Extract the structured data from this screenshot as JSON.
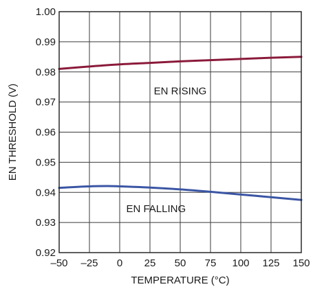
{
  "chart_data": {
    "type": "line",
    "xlabel": "TEMPERATURE (°C)",
    "ylabel": "EN THRESHOLD (V)",
    "xlim": [
      -50,
      150
    ],
    "ylim": [
      0.92,
      1.0
    ],
    "grid": true,
    "x_ticks": [
      "–50",
      "–25",
      "0",
      "25",
      "50",
      "75",
      "100",
      "125",
      "150"
    ],
    "y_ticks": [
      "0.92",
      "0.93",
      "0.94",
      "0.95",
      "0.96",
      "0.97",
      "0.98",
      "0.99",
      "1.00"
    ],
    "x_tick_values": [
      -50,
      -25,
      0,
      25,
      50,
      75,
      100,
      125,
      150
    ],
    "y_tick_values": [
      0.92,
      0.93,
      0.94,
      0.95,
      0.96,
      0.97,
      0.98,
      0.99,
      1.0
    ],
    "series": [
      {
        "name": "EN RISING",
        "color": "#8b1a3a",
        "x": [
          -50,
          -25,
          0,
          25,
          50,
          75,
          100,
          125,
          150
        ],
        "y": [
          0.981,
          0.9818,
          0.9825,
          0.983,
          0.9835,
          0.9839,
          0.9843,
          0.9847,
          0.985
        ]
      },
      {
        "name": "EN FALLING",
        "color": "#3a55a4",
        "x": [
          -50,
          -25,
          -10,
          0,
          25,
          50,
          75,
          100,
          125,
          150
        ],
        "y": [
          0.9415,
          0.942,
          0.9421,
          0.942,
          0.9416,
          0.941,
          0.9402,
          0.9393,
          0.9384,
          0.9375
        ]
      }
    ],
    "annotations": [
      {
        "text": "EN RISING",
        "x": 50,
        "y": 0.9725
      },
      {
        "text": "EN FALLING",
        "x": 30,
        "y": 0.9335
      }
    ]
  }
}
